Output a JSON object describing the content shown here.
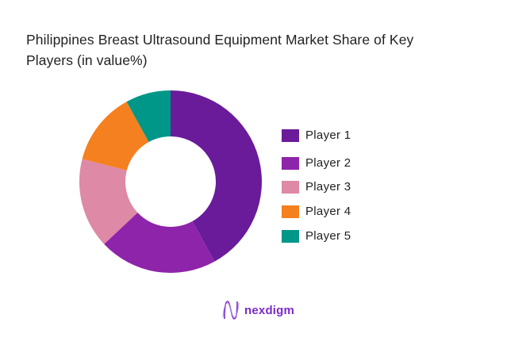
{
  "chart_data": {
    "type": "pie",
    "subtype": "donut",
    "title": "Philippines Breast Ultrasound Equipment Market Share of Key Players (in value%)",
    "categories": [
      "Player 1",
      "Player 2",
      "Player 3",
      "Player 4",
      "Player 5"
    ],
    "values": [
      42,
      21,
      16,
      13,
      8
    ],
    "unit": "%",
    "colors": [
      "#6a1b9a",
      "#8e24aa",
      "#de89a5",
      "#f5801f",
      "#009688"
    ],
    "legend_position": "right",
    "start_angle": "12 o'clock, clockwise",
    "data_labels": false
  },
  "title": {
    "line1": "Philippines Breast Ultrasound Equipment Market Share of Key",
    "line2": "Players (in value%)"
  },
  "legend": {
    "items": [
      {
        "label": "Player 1",
        "color": "#6a1b9a"
      },
      {
        "label": "Player 2",
        "color": "#8e24aa"
      },
      {
        "label": "Player 3",
        "color": "#de89a5"
      },
      {
        "label": "Player 4",
        "color": "#f5801f"
      },
      {
        "label": "Player 5",
        "color": "#009688"
      }
    ]
  },
  "brand": {
    "name": "nexdigm",
    "icon": "nexdigm-logo-icon",
    "color": "#7a2bc6"
  }
}
